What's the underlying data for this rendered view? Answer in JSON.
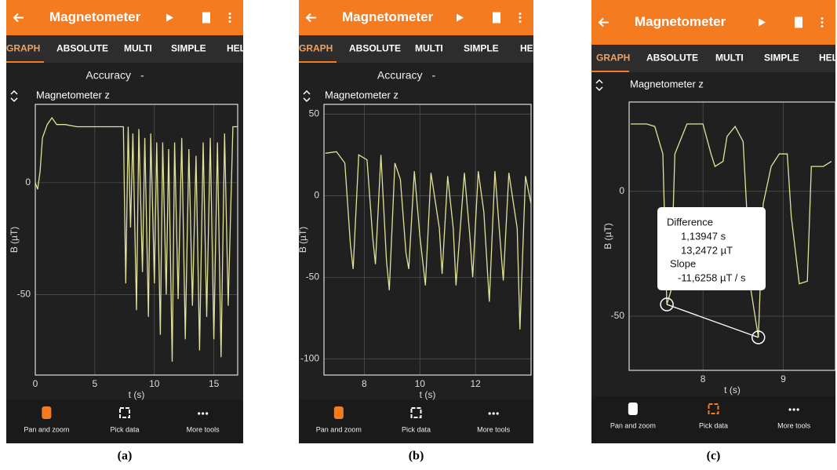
{
  "screens": [
    {
      "title": "Magnetometer",
      "tabs": [
        "GRAPH",
        "ABSOLUTE",
        "MULTI",
        "SIMPLE",
        "HEL"
      ],
      "accuracy": {
        "label": "Accuracy",
        "value": "-"
      },
      "chart": {
        "type": "line",
        "title": "Magnetometer z",
        "ylabel": "B (µT)",
        "xlabel": "t (s)",
        "color": "#e2e29a",
        "xlim": [
          0,
          17
        ],
        "ylim": [
          -86,
          35
        ],
        "xticks": [
          0,
          5,
          10,
          15
        ],
        "yticks": [
          -50,
          0
        ],
        "grid": true,
        "x": [
          0,
          0.2,
          0.4,
          0.6,
          1.0,
          1.4,
          1.8,
          2.5,
          3.5,
          4.5,
          5.5,
          6.5,
          7.4,
          7.6,
          7.8,
          8.0,
          8.2,
          8.5,
          8.7,
          9.0,
          9.2,
          9.5,
          9.7,
          10.0,
          10.2,
          10.5,
          10.7,
          11.0,
          11.2,
          11.5,
          11.7,
          12.0,
          12.3,
          12.6,
          12.9,
          13.2,
          13.5,
          13.8,
          14.1,
          14.4,
          14.7,
          15.0,
          15.3,
          15.6,
          15.9,
          16.2,
          16.6,
          17
        ],
        "values": [
          0,
          -3,
          5,
          20,
          26,
          29,
          26,
          26,
          25,
          25,
          25,
          25,
          25,
          -45,
          25,
          -20,
          22,
          -57,
          24,
          -40,
          20,
          -60,
          22,
          -45,
          18,
          -68,
          18,
          -50,
          15,
          -80,
          18,
          -52,
          20,
          -70,
          15,
          -55,
          12,
          -75,
          18,
          -60,
          20,
          -70,
          18,
          -78,
          22,
          -55,
          25,
          25
        ]
      },
      "tools": [
        "Pan and zoom",
        "Pick data",
        "More tools"
      ],
      "caption": "(a)"
    },
    {
      "title": "Magnetometer",
      "tabs": [
        "GRAPH",
        "ABSOLUTE",
        "MULTI",
        "SIMPLE",
        "HEL"
      ],
      "accuracy": {
        "label": "Accuracy",
        "value": "-"
      },
      "chart": {
        "type": "line",
        "title": "Magnetometer z",
        "ylabel": "B (µT)",
        "xlabel": "t (s)",
        "color": "#e2e29a",
        "xlim": [
          6.55,
          14
        ],
        "ylim": [
          -110,
          56
        ],
        "xticks": [
          8,
          10,
          12
        ],
        "yticks": [
          -100,
          -50,
          0,
          50
        ],
        "grid": true,
        "x": [
          6.6,
          7.0,
          7.3,
          7.5,
          7.6,
          7.8,
          8.1,
          8.3,
          8.4,
          8.6,
          8.8,
          8.9,
          9.1,
          9.3,
          9.5,
          9.6,
          9.8,
          10.0,
          10.2,
          10.4,
          10.7,
          10.8,
          11.0,
          11.2,
          11.3,
          11.6,
          11.8,
          11.9,
          12.1,
          12.3,
          12.5,
          12.7,
          12.9,
          13.0,
          13.2,
          13.5,
          13.6,
          13.8,
          14.0
        ],
        "values": [
          26,
          27,
          20,
          -30,
          -45,
          25,
          22,
          -25,
          -42,
          25,
          -40,
          -58,
          20,
          10,
          -35,
          -45,
          15,
          -25,
          -55,
          14,
          -20,
          -48,
          12,
          -20,
          -55,
          14,
          -25,
          -50,
          15,
          -10,
          -65,
          15,
          -30,
          -52,
          14,
          -20,
          -82,
          12,
          -5
        ]
      },
      "tools": [
        "Pan and zoom",
        "Pick data",
        "More tools"
      ],
      "caption": "(b)"
    },
    {
      "title": "Magnetometer",
      "tabs": [
        "GRAPH",
        "ABSOLUTE",
        "MULTI",
        "SIMPLE",
        "HEL"
      ],
      "chart": {
        "type": "line",
        "title": "Magnetometer z",
        "ylabel": "B (µT)",
        "xlabel": "t (s)",
        "color": "#e2e29a",
        "xlim": [
          7.08,
          9.65
        ],
        "ylim": [
          -71.7,
          35.8
        ],
        "xticks": [
          8,
          9
        ],
        "yticks": [
          -50,
          0
        ],
        "grid": true,
        "x": [
          7.1,
          7.3,
          7.4,
          7.5,
          7.55,
          7.6,
          7.65,
          7.8,
          8.0,
          8.1,
          8.15,
          8.25,
          8.3,
          8.4,
          8.5,
          8.55,
          8.6,
          8.69,
          8.75,
          8.85,
          8.95,
          9.05,
          9.1,
          9.2,
          9.3,
          9.35,
          9.5,
          9.6
        ],
        "values": [
          27,
          27,
          26,
          15,
          -45.3,
          -40,
          15,
          27,
          27,
          15,
          10,
          12,
          22,
          26,
          20,
          -10,
          -40,
          -58.5,
          -5,
          10,
          15,
          15,
          -10,
          -37,
          -36,
          10,
          10,
          12
        ],
        "picks": {
          "x": [
            7.55,
            8.69
          ],
          "values": [
            -45.3,
            -58.5
          ]
        },
        "annotation": {
          "difference": "Difference",
          "dt": "1,13947 s",
          "dB": "13,2472 µT",
          "slope": "Slope",
          "slope_value": "-11,6258 µT / s"
        }
      },
      "tools": [
        "Pan and zoom",
        "Pick data",
        "More tools"
      ],
      "caption": "(c)"
    }
  ]
}
